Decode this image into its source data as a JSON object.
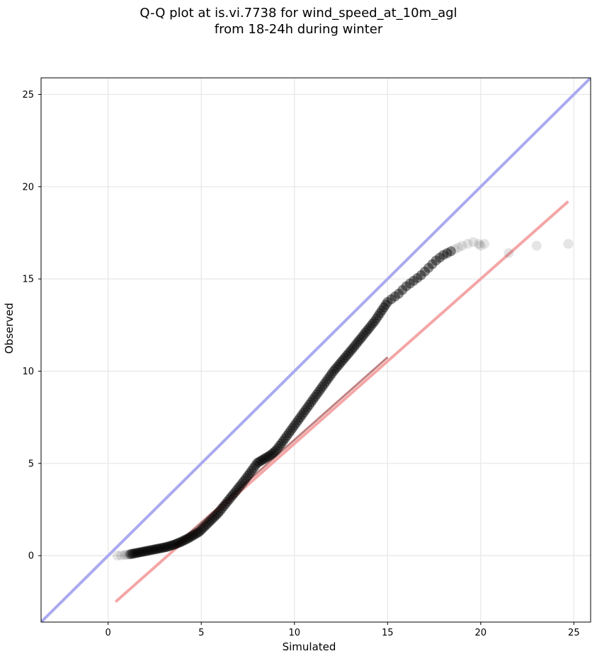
{
  "title_line_1": "Q-Q plot at is.vi.7738 for wind_speed_at_10m_agl",
  "title_line_2": "from 18-24h during winter",
  "chart_data": {
    "type": "scatter",
    "title": "Q-Q plot at is.vi.7738 for wind_speed_at_10m_agl\nfrom 18-24h during winter",
    "xlabel": "Simulated",
    "ylabel": "Observed",
    "xlim": [
      -3.6,
      25.9
    ],
    "ylim": [
      -3.6,
      25.9
    ],
    "xticks": [
      0,
      5,
      10,
      15,
      20,
      25
    ],
    "yticks": [
      0,
      5,
      10,
      15,
      20,
      25
    ],
    "grid": true,
    "colors": {
      "points": "#000000",
      "identity_line": "#aaaaf0",
      "fit_line": "#f4a6a6",
      "fit_line_dense": "#8b1a1a"
    },
    "series": [
      {
        "kind": "points",
        "x": [
          0.5,
          0.7,
          0.9,
          1.0,
          1.1,
          1.2,
          1.3,
          1.4,
          1.5,
          1.6,
          1.7,
          1.8,
          1.9,
          2.0,
          2.1,
          2.2,
          2.3,
          2.4,
          2.5,
          2.6,
          2.7,
          2.8,
          2.9,
          3.0,
          3.1,
          3.2,
          3.3,
          3.4,
          3.5,
          3.6,
          3.7,
          3.8,
          3.9,
          4.0,
          4.1,
          4.2,
          4.3,
          4.4,
          4.5,
          4.6,
          4.7,
          4.8,
          4.9,
          5.0,
          5.1,
          5.2,
          5.3,
          5.4,
          5.5,
          5.6,
          5.7,
          5.8,
          5.9,
          6.0,
          6.1,
          6.2,
          6.3,
          6.4,
          6.5,
          6.6,
          6.7,
          6.8,
          6.9,
          7.0,
          7.1,
          7.2,
          7.3,
          7.4,
          7.5,
          7.6,
          7.7,
          7.8,
          7.9,
          8.0,
          8.1,
          8.2,
          8.3,
          8.4,
          8.5,
          8.6,
          8.7,
          8.8,
          8.9,
          9.0,
          9.1,
          9.2,
          9.3,
          9.4,
          9.5,
          9.6,
          9.7,
          9.8,
          9.9,
          10.0,
          10.1,
          10.2,
          10.3,
          10.4,
          10.5,
          10.6,
          10.7,
          10.8,
          10.9,
          11.0,
          11.1,
          11.2,
          11.3,
          11.4,
          11.5,
          11.6,
          11.7,
          11.8,
          11.9,
          12.0,
          12.1,
          12.2,
          12.3,
          12.4,
          12.5,
          12.6,
          12.7,
          12.8,
          12.9,
          13.0,
          13.1,
          13.2,
          13.3,
          13.4,
          13.5,
          13.6,
          13.7,
          13.8,
          13.9,
          14.0,
          14.1,
          14.2,
          14.3,
          14.4,
          14.5,
          14.6,
          14.7,
          14.8,
          14.9,
          15.0,
          15.2,
          15.4,
          15.6,
          15.8,
          16.0,
          16.2,
          16.4,
          16.6,
          16.8,
          17.0,
          17.2,
          17.4,
          17.6,
          17.8,
          18.0,
          18.2,
          18.4,
          18.6,
          18.8,
          19.0,
          19.3,
          19.6,
          19.9,
          20.0,
          20.2,
          21.5,
          23.0,
          24.7
        ],
        "y": [
          0.0,
          0.02,
          0.04,
          0.05,
          0.06,
          0.08,
          0.1,
          0.12,
          0.14,
          0.16,
          0.18,
          0.2,
          0.22,
          0.24,
          0.26,
          0.28,
          0.3,
          0.32,
          0.34,
          0.36,
          0.38,
          0.4,
          0.42,
          0.44,
          0.46,
          0.49,
          0.52,
          0.55,
          0.58,
          0.62,
          0.66,
          0.7,
          0.74,
          0.79,
          0.84,
          0.89,
          0.94,
          1.0,
          1.06,
          1.12,
          1.18,
          1.24,
          1.3,
          1.4,
          1.5,
          1.6,
          1.7,
          1.8,
          1.9,
          2.0,
          2.1,
          2.2,
          2.3,
          2.42,
          2.55,
          2.68,
          2.8,
          2.93,
          3.05,
          3.18,
          3.3,
          3.42,
          3.55,
          3.68,
          3.8,
          3.93,
          4.06,
          4.19,
          4.33,
          4.46,
          4.6,
          4.74,
          4.88,
          5.02,
          5.08,
          5.14,
          5.2,
          5.26,
          5.32,
          5.38,
          5.44,
          5.52,
          5.6,
          5.7,
          5.82,
          5.95,
          6.08,
          6.22,
          6.36,
          6.5,
          6.64,
          6.78,
          6.92,
          7.06,
          7.2,
          7.34,
          7.48,
          7.62,
          7.76,
          7.9,
          8.04,
          8.18,
          8.32,
          8.46,
          8.6,
          8.74,
          8.88,
          9.02,
          9.16,
          9.3,
          9.44,
          9.58,
          9.72,
          9.86,
          10.0,
          10.12,
          10.24,
          10.36,
          10.48,
          10.6,
          10.72,
          10.84,
          10.96,
          11.08,
          11.2,
          11.32,
          11.45,
          11.58,
          11.7,
          11.82,
          11.95,
          12.08,
          12.2,
          12.32,
          12.45,
          12.58,
          12.7,
          12.85,
          13.0,
          13.15,
          13.3,
          13.45,
          13.6,
          13.75,
          13.9,
          14.05,
          14.2,
          14.4,
          14.6,
          14.75,
          14.9,
          15.05,
          15.2,
          15.4,
          15.6,
          15.8,
          16.0,
          16.15,
          16.3,
          16.4,
          16.5,
          16.6,
          16.7,
          16.8,
          16.9,
          17.0,
          16.9,
          16.8,
          16.9,
          16.4,
          16.8,
          16.9
        ]
      },
      {
        "kind": "identity_line",
        "x": [
          -3.6,
          25.9
        ],
        "y": [
          -3.6,
          25.9
        ]
      },
      {
        "kind": "fit_line",
        "x": [
          0.4,
          24.7
        ],
        "y": [
          -2.5,
          19.2
        ]
      }
    ]
  }
}
